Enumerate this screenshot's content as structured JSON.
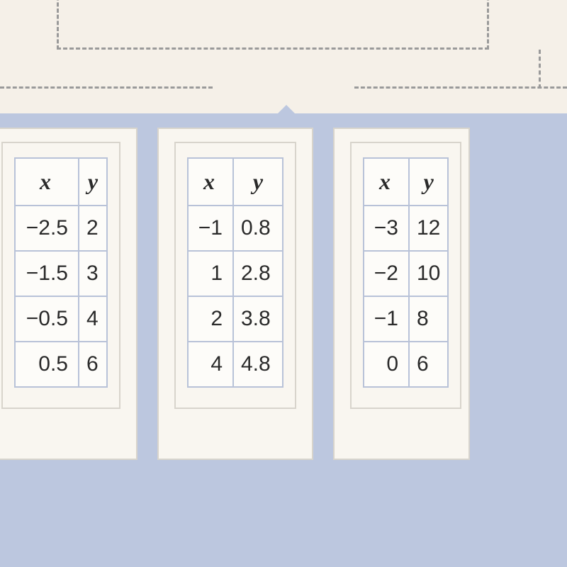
{
  "layout": {
    "page_bg": "#f5f0e8",
    "band_bg": "#bcc7df",
    "card_bg": "#f9f6f0",
    "cell_bg": "#fdfcf9",
    "table_border": "#b8c2d8",
    "card_border": "#d8d4cc",
    "dash_color": "#9a9a9a",
    "header_fontsize": 32,
    "cell_fontsize": 30
  },
  "tables": [
    {
      "type": "table",
      "columns": [
        "x",
        "y"
      ],
      "rows": [
        [
          "−2.5",
          "2"
        ],
        [
          "−1.5",
          "3"
        ],
        [
          "−0.5",
          "4"
        ],
        [
          "0.5",
          "6"
        ]
      ]
    },
    {
      "type": "table",
      "columns": [
        "x",
        "y"
      ],
      "rows": [
        [
          "−1",
          "0.8"
        ],
        [
          "1",
          "2.8"
        ],
        [
          "2",
          "3.8"
        ],
        [
          "4",
          "4.8"
        ]
      ]
    },
    {
      "type": "table",
      "columns": [
        "x",
        "y"
      ],
      "rows": [
        [
          "−3",
          "12"
        ],
        [
          "−2",
          "10"
        ],
        [
          "−1",
          "8"
        ],
        [
          "0",
          "6"
        ]
      ]
    }
  ]
}
